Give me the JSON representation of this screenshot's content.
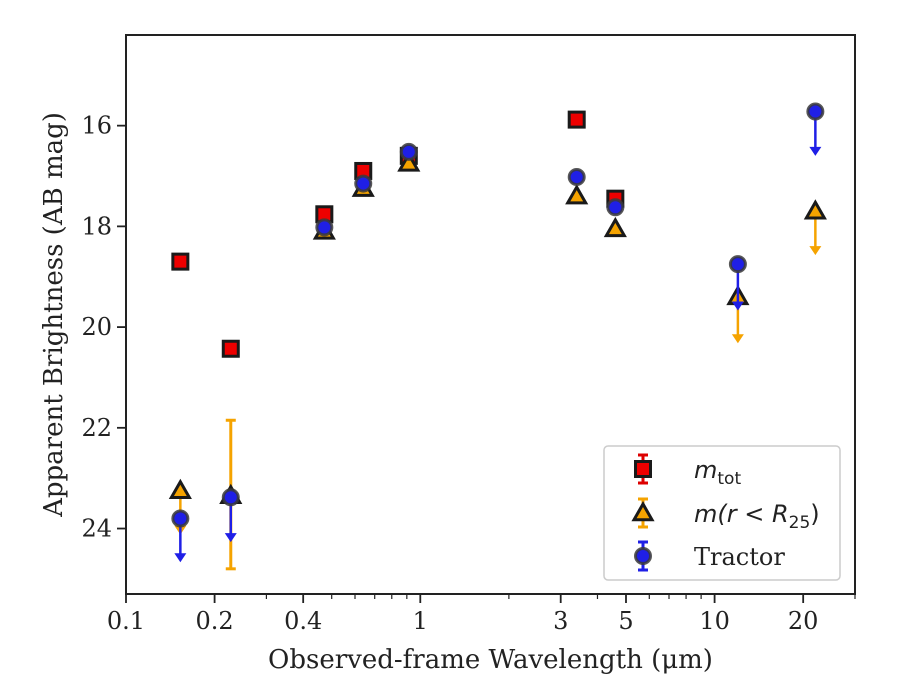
{
  "chart_data": {
    "type": "scatter",
    "title": "",
    "xlabel": "Observed-frame Wavelength (μm)",
    "ylabel": "Apparent Brightness (AB mag)",
    "xscale": "log",
    "xlim": [
      0.1,
      30
    ],
    "ylim": [
      25.3,
      14.2
    ],
    "yinverted": true,
    "grid": false,
    "legend_position": "lower-right",
    "x_ticks": [
      {
        "value": 0.1,
        "label": "0.1"
      },
      {
        "value": 0.2,
        "label": "0.2"
      },
      {
        "value": 0.4,
        "label": "0.4"
      },
      {
        "value": 1,
        "label": "1"
      },
      {
        "value": 3,
        "label": "3"
      },
      {
        "value": 5,
        "label": "5"
      },
      {
        "value": 10,
        "label": "10"
      },
      {
        "value": 20,
        "label": "20"
      }
    ],
    "y_ticks": [
      {
        "value": 16,
        "label": "16"
      },
      {
        "value": 18,
        "label": "18"
      },
      {
        "value": 20,
        "label": "20"
      },
      {
        "value": 22,
        "label": "22"
      },
      {
        "value": 24,
        "label": "24"
      }
    ],
    "series": [
      {
        "key": "mtot",
        "legend_prefix": "m",
        "legend_sub": "tot",
        "legend_suffix": "",
        "marker": "square",
        "color": "#ee0000",
        "edge_color": "#1a1a1a",
        "points": [
          {
            "x": 0.153,
            "y": 18.7
          },
          {
            "x": 0.227,
            "y": 20.43
          },
          {
            "x": 0.472,
            "y": 17.76
          },
          {
            "x": 0.64,
            "y": 16.9
          },
          {
            "x": 0.914,
            "y": 16.6
          },
          {
            "x": 3.4,
            "y": 15.88
          },
          {
            "x": 4.6,
            "y": 17.45
          }
        ]
      },
      {
        "key": "mr25",
        "legend_prefix": "m(r < R",
        "legend_sub": "25",
        "legend_suffix": ")",
        "marker": "triangle",
        "color": "#f5a300",
        "edge_color": "#1a1a1a",
        "points": [
          {
            "x": 0.153,
            "y": 23.25,
            "upper_limit_to": 24.1
          },
          {
            "x": 0.227,
            "y": 23.35,
            "yerr_low": 21.85,
            "yerr_high": 24.8
          },
          {
            "x": 0.472,
            "y": 18.1
          },
          {
            "x": 0.64,
            "y": 17.25
          },
          {
            "x": 0.914,
            "y": 16.75
          },
          {
            "x": 3.4,
            "y": 17.4
          },
          {
            "x": 4.6,
            "y": 18.05
          },
          {
            "x": 12.0,
            "y": 19.4,
            "upper_limit_to": 20.3
          },
          {
            "x": 22.0,
            "y": 17.7,
            "upper_limit_to": 18.55
          }
        ]
      },
      {
        "key": "tractor",
        "legend_prefix": "Tractor",
        "legend_sub": "",
        "legend_suffix": "",
        "marker": "circle",
        "color": "#1f1fe6",
        "edge_color": "#3a3a3a",
        "points": [
          {
            "x": 0.153,
            "y": 23.8,
            "upper_limit_to": 24.65
          },
          {
            "x": 0.227,
            "y": 23.38,
            "upper_limit_to": 24.25
          },
          {
            "x": 0.472,
            "y": 18.02
          },
          {
            "x": 0.64,
            "y": 17.15
          },
          {
            "x": 0.914,
            "y": 16.52
          },
          {
            "x": 3.4,
            "y": 17.02
          },
          {
            "x": 4.6,
            "y": 17.62
          },
          {
            "x": 12.0,
            "y": 18.75,
            "upper_limit_to": 19.65
          },
          {
            "x": 22.0,
            "y": 15.72,
            "upper_limit_to": 16.58
          }
        ]
      }
    ]
  }
}
